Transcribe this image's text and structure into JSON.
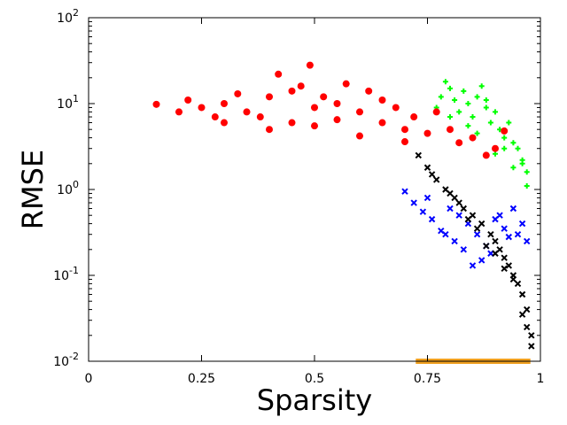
{
  "chart_data": {
    "type": "scatter",
    "xlabel": "Sparsity",
    "ylabel": "RMSE",
    "xlim": [
      0,
      1
    ],
    "ylim": [
      0.01,
      100
    ],
    "y_scale": "log",
    "grid": false,
    "legend": "none",
    "x_ticks": [
      "0",
      "0.25",
      "0.5",
      "0.75",
      "1"
    ],
    "x_tick_values": [
      0,
      0.25,
      0.5,
      0.75,
      1
    ],
    "y_ticks": [
      {
        "value": 0.01,
        "base": "10",
        "exp": "-2"
      },
      {
        "value": 0.1,
        "base": "10",
        "exp": "-1"
      },
      {
        "value": 1,
        "base": "10",
        "exp": "0"
      },
      {
        "value": 10,
        "base": "10",
        "exp": "1"
      },
      {
        "value": 100,
        "base": "10",
        "exp": "2"
      }
    ],
    "series": [
      {
        "color": "#00ff00",
        "marker": "plus",
        "x": [
          0.77,
          0.78,
          0.79,
          0.8,
          0.81,
          0.82,
          0.83,
          0.84,
          0.85,
          0.86,
          0.87,
          0.88,
          0.89,
          0.9,
          0.91,
          0.92,
          0.93,
          0.94,
          0.95,
          0.96,
          0.97,
          0.8,
          0.84,
          0.88,
          0.92,
          0.96,
          0.86,
          0.9,
          0.94,
          0.97
        ],
        "y": [
          9,
          12,
          18,
          15,
          11,
          8,
          14,
          10,
          7,
          12,
          16,
          9,
          6,
          8,
          5,
          4,
          6,
          3.5,
          3,
          2.2,
          1.6,
          7,
          5.5,
          11,
          3,
          2,
          4.5,
          2.6,
          1.8,
          1.1
        ]
      },
      {
        "color": "#ff0000",
        "marker": "circle",
        "x": [
          0.15,
          0.2,
          0.22,
          0.25,
          0.28,
          0.3,
          0.33,
          0.35,
          0.38,
          0.4,
          0.42,
          0.45,
          0.47,
          0.49,
          0.5,
          0.52,
          0.55,
          0.57,
          0.6,
          0.62,
          0.65,
          0.68,
          0.7,
          0.72,
          0.75,
          0.77,
          0.8,
          0.82,
          0.85,
          0.88,
          0.9,
          0.92,
          0.3,
          0.4,
          0.5,
          0.6,
          0.7,
          0.45,
          0.55,
          0.65
        ],
        "y": [
          9.8,
          8,
          11,
          9,
          7,
          10,
          13,
          8,
          7,
          12,
          22,
          6,
          16,
          28,
          9,
          12,
          10,
          17,
          8,
          14,
          6,
          9,
          5,
          7,
          4.5,
          8,
          5,
          3.5,
          4,
          2.5,
          3,
          4.8,
          6,
          5,
          5.5,
          4.2,
          3.6,
          14,
          6.5,
          11
        ]
      },
      {
        "color": "#0000ff",
        "marker": "x",
        "x": [
          0.7,
          0.72,
          0.74,
          0.76,
          0.78,
          0.8,
          0.82,
          0.84,
          0.86,
          0.88,
          0.9,
          0.92,
          0.94,
          0.96,
          0.97,
          0.75,
          0.79,
          0.83,
          0.87,
          0.91,
          0.95,
          0.81,
          0.85,
          0.89,
          0.93
        ],
        "y": [
          0.95,
          0.7,
          0.55,
          0.45,
          0.33,
          0.6,
          0.5,
          0.4,
          0.3,
          0.22,
          0.45,
          0.35,
          0.6,
          0.4,
          0.25,
          0.8,
          0.3,
          0.2,
          0.15,
          0.5,
          0.3,
          0.25,
          0.13,
          0.18,
          0.28
        ]
      },
      {
        "color": "#000000",
        "marker": "x",
        "x": [
          0.73,
          0.75,
          0.77,
          0.79,
          0.81,
          0.83,
          0.85,
          0.87,
          0.89,
          0.9,
          0.91,
          0.92,
          0.93,
          0.94,
          0.95,
          0.96,
          0.97,
          0.98,
          0.76,
          0.8,
          0.84,
          0.88,
          0.92,
          0.96,
          0.82,
          0.86,
          0.9,
          0.94,
          0.97,
          0.98
        ],
        "y": [
          2.5,
          1.8,
          1.3,
          1.0,
          0.8,
          0.6,
          0.5,
          0.4,
          0.3,
          0.25,
          0.2,
          0.16,
          0.13,
          0.1,
          0.08,
          0.06,
          0.04,
          0.02,
          1.5,
          0.9,
          0.45,
          0.22,
          0.12,
          0.035,
          0.7,
          0.35,
          0.18,
          0.09,
          0.025,
          0.015
        ]
      },
      {
        "color": "#f0a020",
        "marker": "square",
        "x": [
          0.73,
          0.74,
          0.75,
          0.76,
          0.77,
          0.78,
          0.79,
          0.8,
          0.81,
          0.82,
          0.83,
          0.84,
          0.85,
          0.86,
          0.87,
          0.88,
          0.89,
          0.9,
          0.91,
          0.92,
          0.93,
          0.94,
          0.95,
          0.96,
          0.97
        ],
        "y": [
          0.01,
          0.01,
          0.01,
          0.01,
          0.01,
          0.01,
          0.01,
          0.01,
          0.01,
          0.01,
          0.01,
          0.01,
          0.01,
          0.01,
          0.01,
          0.01,
          0.01,
          0.01,
          0.01,
          0.01,
          0.01,
          0.01,
          0.01,
          0.01,
          0.01
        ]
      }
    ]
  }
}
